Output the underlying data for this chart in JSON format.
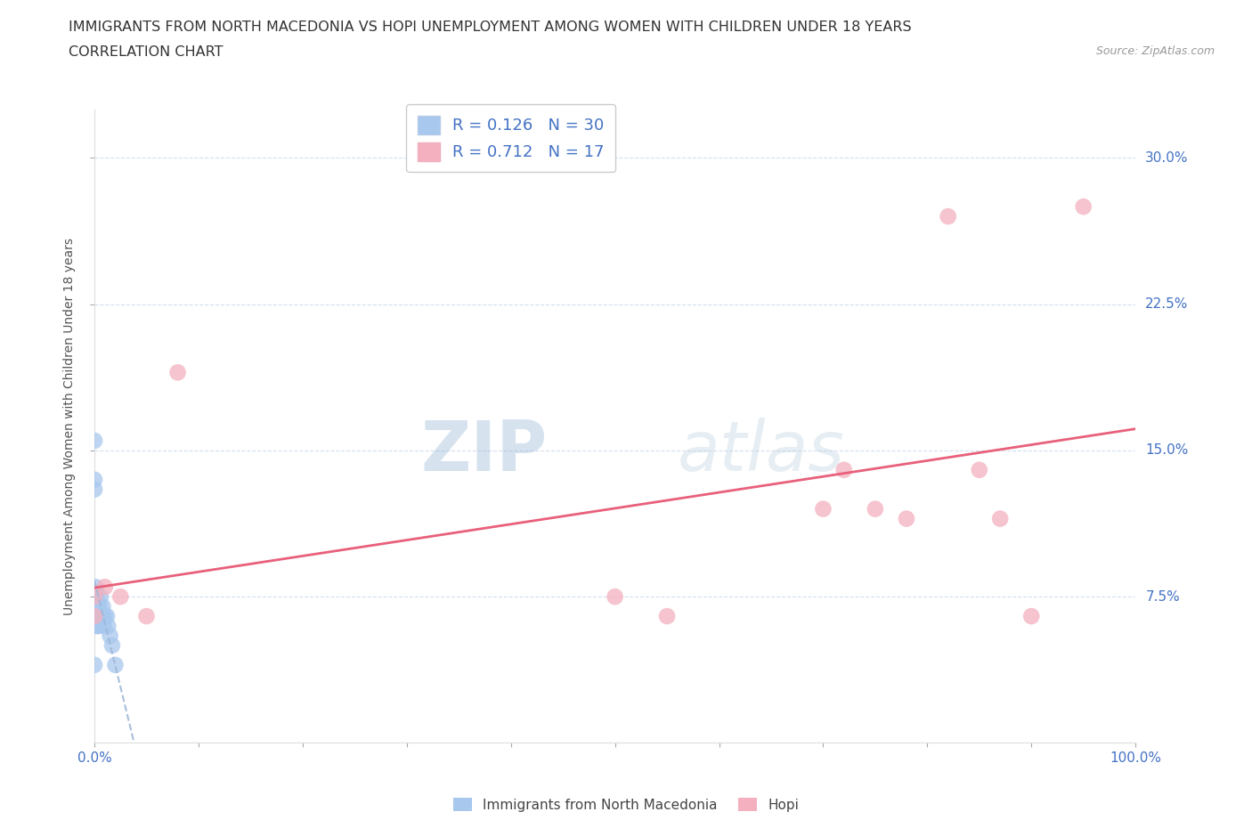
{
  "title": "IMMIGRANTS FROM NORTH MACEDONIA VS HOPI UNEMPLOYMENT AMONG WOMEN WITH CHILDREN UNDER 18 YEARS",
  "subtitle": "CORRELATION CHART",
  "source": "Source: ZipAtlas.com",
  "ylabel": "Unemployment Among Women with Children Under 18 years",
  "xlim": [
    0.0,
    1.0
  ],
  "ylim": [
    0.0,
    0.325
  ],
  "xticks": [
    0.0,
    0.1,
    0.2,
    0.3,
    0.4,
    0.5,
    0.6,
    0.7,
    0.8,
    0.9,
    1.0
  ],
  "xticklabels": [
    "0.0%",
    "",
    "",
    "",
    "",
    "",
    "",
    "",
    "",
    "",
    "100.0%"
  ],
  "yticks": [
    0.075,
    0.15,
    0.225,
    0.3
  ],
  "yticklabels": [
    "7.5%",
    "15.0%",
    "22.5%",
    "30.0%"
  ],
  "blue_color": "#a8c8ee",
  "pink_color": "#f4b0bf",
  "blue_line_color": "#a0b8d8",
  "pink_line_color": "#e8607a",
  "R_blue": 0.126,
  "N_blue": 30,
  "R_pink": 0.712,
  "N_pink": 17,
  "blue_scatter_x": [
    0.0,
    0.0,
    0.0,
    0.0,
    0.0,
    0.001,
    0.001,
    0.001,
    0.001,
    0.002,
    0.002,
    0.002,
    0.003,
    0.003,
    0.003,
    0.004,
    0.004,
    0.005,
    0.005,
    0.006,
    0.007,
    0.008,
    0.008,
    0.009,
    0.01,
    0.012,
    0.013,
    0.015,
    0.017,
    0.02
  ],
  "blue_scatter_y": [
    0.155,
    0.135,
    0.13,
    0.06,
    0.04,
    0.08,
    0.075,
    0.07,
    0.065,
    0.075,
    0.07,
    0.065,
    0.07,
    0.065,
    0.06,
    0.065,
    0.06,
    0.07,
    0.065,
    0.075,
    0.065,
    0.07,
    0.065,
    0.06,
    0.065,
    0.065,
    0.06,
    0.055,
    0.05,
    0.04
  ],
  "pink_scatter_x": [
    0.0,
    0.0,
    0.01,
    0.025,
    0.05,
    0.08,
    0.5,
    0.55,
    0.7,
    0.72,
    0.75,
    0.78,
    0.82,
    0.85,
    0.87,
    0.9,
    0.95
  ],
  "pink_scatter_y": [
    0.075,
    0.065,
    0.08,
    0.075,
    0.065,
    0.19,
    0.075,
    0.065,
    0.12,
    0.14,
    0.12,
    0.115,
    0.27,
    0.14,
    0.115,
    0.065,
    0.275
  ],
  "watermark_top": "ZIP",
  "watermark_bot": "atlas",
  "legend_entries": [
    "Immigrants from North Macedonia",
    "Hopi"
  ],
  "title_fontsize": 11.5,
  "subtitle_fontsize": 11.5,
  "axis_label_fontsize": 10,
  "tick_fontsize": 11
}
